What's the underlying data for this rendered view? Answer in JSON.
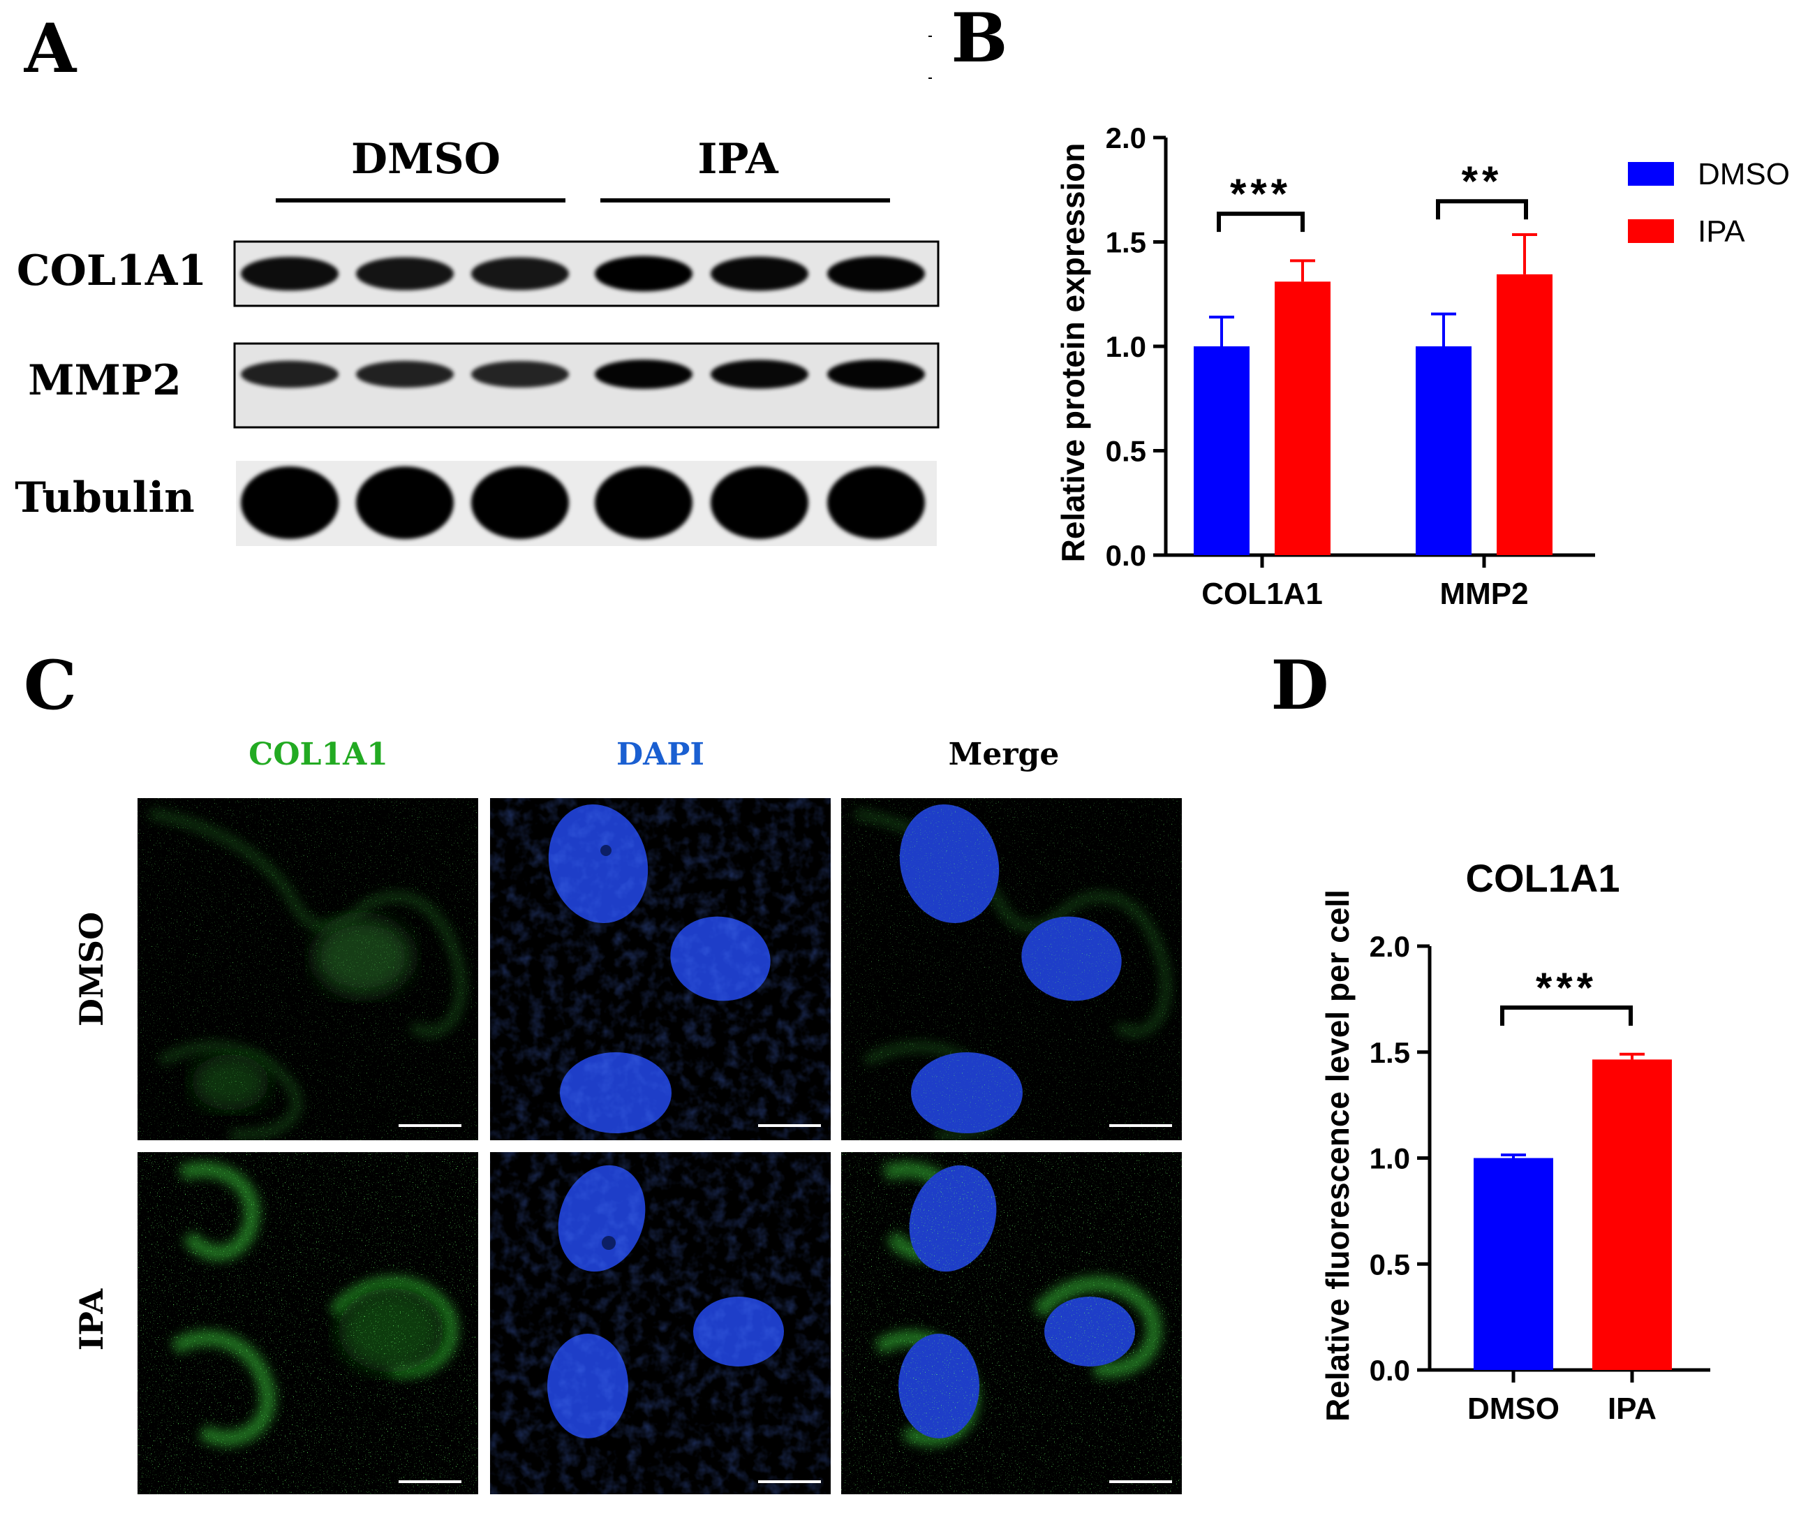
{
  "figure": {
    "panel_labels": [
      "A",
      "B",
      "C",
      "D"
    ],
    "panel_a": {
      "groups": [
        "DMSO",
        "IPA"
      ],
      "rows": [
        {
          "label": "COL1A1",
          "intensities": [
            0.78,
            0.72,
            0.7,
            0.92,
            0.82,
            0.86
          ]
        },
        {
          "label": "MMP2",
          "intensities": [
            0.62,
            0.6,
            0.58,
            0.86,
            0.82,
            0.86
          ]
        },
        {
          "label": "Tubulin",
          "intensities": [
            1.0,
            1.0,
            1.0,
            1.0,
            1.0,
            1.0
          ]
        }
      ]
    },
    "panel_c": {
      "channels": [
        {
          "label": "COL1A1",
          "color": "#22aa22"
        },
        {
          "label": "DAPI",
          "color": "#1a5fd1"
        },
        {
          "label": "Merge",
          "color": "#000000"
        }
      ],
      "conditions": [
        "DMSO",
        "IPA"
      ]
    }
  },
  "chart_data": [
    {
      "panel": "B",
      "type": "bar",
      "categories": [
        "COL1A1",
        "MMP2"
      ],
      "series": [
        {
          "name": "DMSO",
          "color": "#0000ff",
          "values": [
            1.0,
            1.0
          ],
          "error": [
            0.14,
            0.155
          ]
        },
        {
          "name": "IPA",
          "color": "#ff0000",
          "values": [
            1.31,
            1.345
          ],
          "error": [
            0.1,
            0.19
          ]
        }
      ],
      "significance": [
        "***",
        "**"
      ],
      "ylabel": "Relative protein expression",
      "yticks": [
        "0.0",
        "0.5",
        "1.0",
        "1.5",
        "2.0"
      ],
      "ylim": [
        0,
        2.0
      ],
      "legend": "right"
    },
    {
      "panel": "D",
      "type": "bar",
      "title": "COL1A1",
      "categories": [
        "DMSO",
        "IPA"
      ],
      "series": [
        {
          "name": "",
          "values": [
            1.0,
            1.465
          ],
          "colors": [
            "#0000ff",
            "#ff0000"
          ],
          "error": [
            0.015,
            0.025
          ]
        }
      ],
      "significance": [
        "***"
      ],
      "ylabel": "Relative fluorescence level per cell",
      "yticks": [
        "0.0",
        "0.5",
        "1.0",
        "1.5",
        "2.0"
      ],
      "ylim": [
        0,
        2.0
      ]
    }
  ]
}
